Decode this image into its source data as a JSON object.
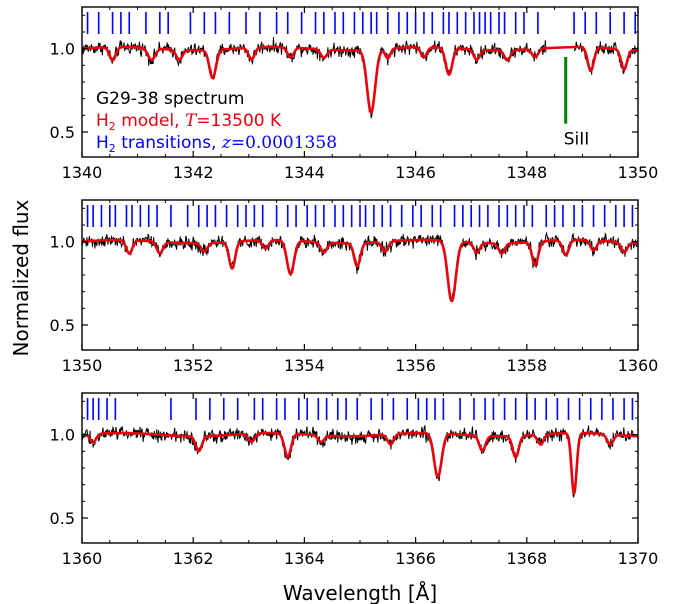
{
  "chart_data": [
    {
      "type": "line",
      "xlim": [
        1340,
        1350
      ],
      "ylim": [
        0.35,
        1.25
      ],
      "xticks": [
        1340,
        1342,
        1344,
        1346,
        1348,
        1350
      ],
      "yticks": [
        0.5,
        1.0
      ],
      "transitions": [
        1340.1,
        1340.3,
        1340.55,
        1340.7,
        1340.85,
        1341.15,
        1341.4,
        1341.55,
        1341.95,
        1342.2,
        1342.4,
        1342.65,
        1342.95,
        1343.2,
        1343.5,
        1343.7,
        1343.95,
        1344.2,
        1344.35,
        1344.55,
        1344.7,
        1344.9,
        1345.05,
        1345.2,
        1345.3,
        1345.5,
        1345.7,
        1345.85,
        1346.0,
        1346.15,
        1346.3,
        1346.5,
        1346.6,
        1346.75,
        1346.9,
        1347.05,
        1347.15,
        1347.25,
        1347.35,
        1347.5,
        1347.6,
        1347.8,
        1347.95,
        1348.2,
        1348.85,
        1349.05,
        1349.25,
        1349.5,
        1349.75,
        1349.95
      ],
      "model_lines": [
        {
          "x": 1340.55,
          "depth": 0.08,
          "width": 0.12
        },
        {
          "x": 1341.25,
          "depth": 0.07,
          "width": 0.14
        },
        {
          "x": 1341.75,
          "depth": 0.06,
          "width": 0.12
        },
        {
          "x": 1342.35,
          "depth": 0.17,
          "width": 0.13
        },
        {
          "x": 1343.05,
          "depth": 0.07,
          "width": 0.12
        },
        {
          "x": 1343.75,
          "depth": 0.06,
          "width": 0.12
        },
        {
          "x": 1344.35,
          "depth": 0.05,
          "width": 0.12
        },
        {
          "x": 1345.2,
          "depth": 0.38,
          "width": 0.16
        },
        {
          "x": 1345.5,
          "depth": 0.06,
          "width": 0.1
        },
        {
          "x": 1346.15,
          "depth": 0.06,
          "width": 0.12
        },
        {
          "x": 1346.6,
          "depth": 0.16,
          "width": 0.13
        },
        {
          "x": 1347.1,
          "depth": 0.06,
          "width": 0.12
        },
        {
          "x": 1347.65,
          "depth": 0.06,
          "width": 0.12
        },
        {
          "x": 1348.15,
          "depth": 0.05,
          "width": 0.12
        },
        {
          "x": 1349.15,
          "depth": 0.14,
          "width": 0.12
        },
        {
          "x": 1349.75,
          "depth": 0.12,
          "width": 0.12
        }
      ],
      "gap": [
        1348.35,
        1348.85
      ],
      "silicon": {
        "x": 1348.7,
        "label": "SiII"
      },
      "legend": {
        "spectrum": "G29-38 spectrum",
        "model_prefix": "H",
        "model_sub": "2",
        "model_text": " model, ",
        "model_T": "T",
        "model_value": "=13500 K",
        "trans_prefix": "H",
        "trans_sub": "2",
        "trans_text": " transitions, ",
        "trans_z": "z",
        "trans_value": "=0.0001358"
      }
    },
    {
      "type": "line",
      "xlim": [
        1350,
        1360
      ],
      "ylim": [
        0.35,
        1.25
      ],
      "xticks": [
        1350,
        1352,
        1354,
        1356,
        1358,
        1360
      ],
      "yticks": [
        0.5,
        1.0
      ],
      "transitions": [
        1350.1,
        1350.2,
        1350.35,
        1350.5,
        1350.6,
        1350.8,
        1350.9,
        1351.05,
        1351.2,
        1351.35,
        1351.6,
        1351.9,
        1352.1,
        1352.25,
        1352.4,
        1352.6,
        1352.8,
        1352.95,
        1353.1,
        1353.25,
        1353.5,
        1353.7,
        1353.85,
        1354.05,
        1354.2,
        1354.35,
        1354.55,
        1354.7,
        1354.85,
        1355.0,
        1355.1,
        1355.25,
        1355.4,
        1355.55,
        1355.75,
        1355.95,
        1356.1,
        1356.3,
        1356.45,
        1356.7,
        1356.85,
        1357.0,
        1357.15,
        1357.3,
        1357.5,
        1357.65,
        1357.8,
        1357.95,
        1358.1,
        1358.35,
        1358.5,
        1358.65,
        1358.85,
        1359.0,
        1359.2,
        1359.4,
        1359.6,
        1359.75,
        1359.9
      ],
      "model_lines": [
        {
          "x": 1350.85,
          "depth": 0.08,
          "width": 0.12
        },
        {
          "x": 1351.4,
          "depth": 0.07,
          "width": 0.12
        },
        {
          "x": 1352.2,
          "depth": 0.05,
          "width": 0.12
        },
        {
          "x": 1352.7,
          "depth": 0.16,
          "width": 0.12
        },
        {
          "x": 1353.3,
          "depth": 0.05,
          "width": 0.12
        },
        {
          "x": 1353.75,
          "depth": 0.2,
          "width": 0.14
        },
        {
          "x": 1354.35,
          "depth": 0.06,
          "width": 0.12
        },
        {
          "x": 1354.95,
          "depth": 0.14,
          "width": 0.12
        },
        {
          "x": 1355.45,
          "depth": 0.06,
          "width": 0.12
        },
        {
          "x": 1356.65,
          "depth": 0.36,
          "width": 0.16
        },
        {
          "x": 1357.1,
          "depth": 0.06,
          "width": 0.12
        },
        {
          "x": 1357.55,
          "depth": 0.06,
          "width": 0.12
        },
        {
          "x": 1358.15,
          "depth": 0.14,
          "width": 0.12
        },
        {
          "x": 1358.7,
          "depth": 0.09,
          "width": 0.12
        },
        {
          "x": 1359.2,
          "depth": 0.06,
          "width": 0.12
        },
        {
          "x": 1359.75,
          "depth": 0.06,
          "width": 0.12
        }
      ]
    },
    {
      "type": "line",
      "xlim": [
        1360,
        1370
      ],
      "ylim": [
        0.35,
        1.25
      ],
      "xticks": [
        1360,
        1362,
        1364,
        1366,
        1368,
        1370
      ],
      "yticks": [
        0.5,
        1.0
      ],
      "transitions": [
        1360.1,
        1360.2,
        1360.3,
        1360.45,
        1360.6,
        1361.6,
        1362.05,
        1362.3,
        1362.55,
        1362.8,
        1363.1,
        1363.25,
        1363.5,
        1363.65,
        1363.9,
        1364.05,
        1364.25,
        1364.4,
        1364.6,
        1364.75,
        1364.95,
        1365.2,
        1365.4,
        1365.6,
        1365.85,
        1366.05,
        1366.2,
        1366.35,
        1366.5,
        1366.8,
        1367.05,
        1367.25,
        1367.4,
        1367.6,
        1367.8,
        1368.0,
        1368.15,
        1368.35,
        1368.55,
        1368.75,
        1368.95,
        1369.15,
        1369.35,
        1369.55,
        1369.75,
        1369.9
      ],
      "model_lines": [
        {
          "x": 1360.2,
          "depth": 0.05,
          "width": 0.12
        },
        {
          "x": 1362.1,
          "depth": 0.09,
          "width": 0.12
        },
        {
          "x": 1363.05,
          "depth": 0.05,
          "width": 0.12
        },
        {
          "x": 1363.7,
          "depth": 0.14,
          "width": 0.13
        },
        {
          "x": 1364.3,
          "depth": 0.04,
          "width": 0.12
        },
        {
          "x": 1365.55,
          "depth": 0.06,
          "width": 0.12
        },
        {
          "x": 1366.4,
          "depth": 0.26,
          "width": 0.15
        },
        {
          "x": 1367.2,
          "depth": 0.09,
          "width": 0.12
        },
        {
          "x": 1367.8,
          "depth": 0.13,
          "width": 0.12
        },
        {
          "x": 1368.25,
          "depth": 0.06,
          "width": 0.12
        },
        {
          "x": 1368.85,
          "depth": 0.36,
          "width": 0.1
        },
        {
          "x": 1369.5,
          "depth": 0.06,
          "width": 0.12
        }
      ]
    }
  ],
  "labels": {
    "ylabel": "Normalized flux",
    "xlabel": "Wavelength [Å]"
  },
  "colors": {
    "spectrum": "#000000",
    "model": "#e8000b",
    "transitions": "#0000ff",
    "silicon": "#008000"
  }
}
